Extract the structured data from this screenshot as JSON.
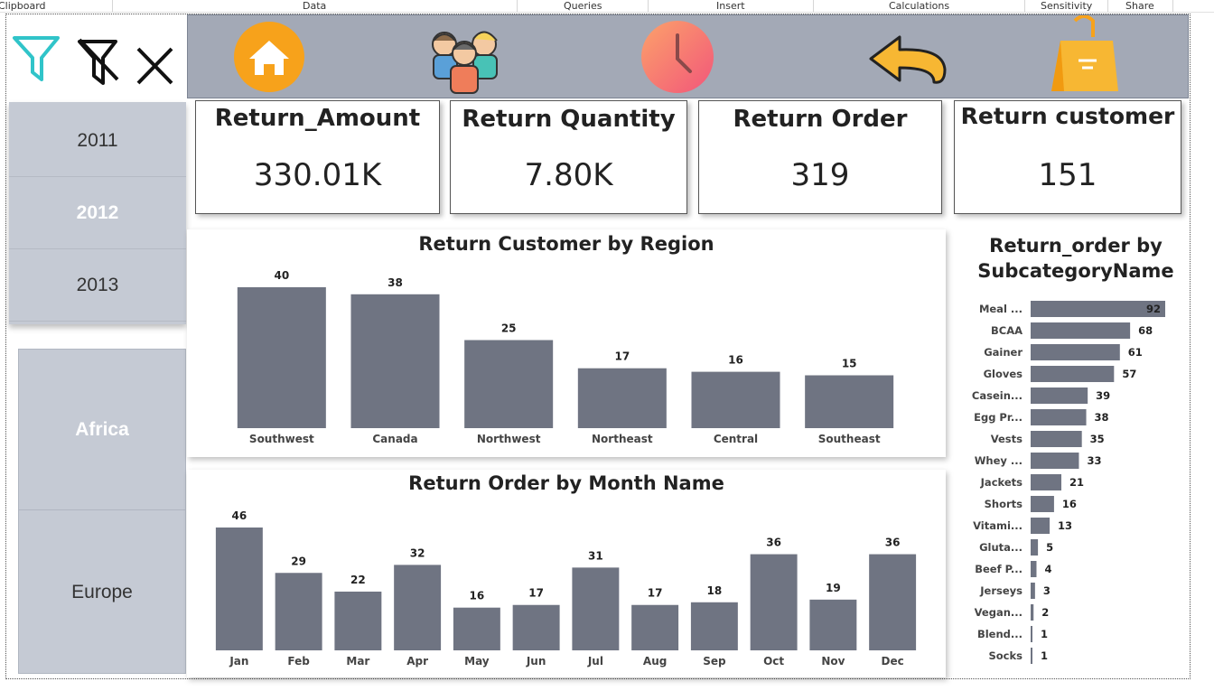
{
  "ribbon": {
    "groups": [
      "Clipboard",
      "Data",
      "Queries",
      "Insert",
      "Calculations",
      "Sensitivity",
      "Share"
    ]
  },
  "navigation": {
    "icons": [
      "home-icon",
      "customers-icon",
      "clock-icon",
      "back-arrow-icon",
      "shopping-bag-icon"
    ]
  },
  "filters": {
    "icons": [
      "filter-icon",
      "clear-filter-icon",
      "close-icon"
    ]
  },
  "years": {
    "items": [
      {
        "label": "2011",
        "selected": false
      },
      {
        "label": "2012",
        "selected": true
      },
      {
        "label": "2013",
        "selected": false
      }
    ]
  },
  "regions": {
    "items": [
      {
        "label": "Africa",
        "selected": true
      },
      {
        "label": "Europe",
        "selected": false
      }
    ]
  },
  "cards": [
    {
      "title": "Return_Amount",
      "value": "330.01K"
    },
    {
      "title": "Return Quantity",
      "value": "7.80K"
    },
    {
      "title": "Return Order",
      "value": "319"
    },
    {
      "title": "Return customer",
      "value": "151"
    }
  ],
  "colors": {
    "bar": "#6f7482",
    "topbar": "#a3a9b6",
    "slicer": "#c5cad4",
    "accent_teal": "#30c4c9"
  },
  "chart_data": [
    {
      "type": "bar",
      "title": "Return Customer by Region",
      "categories": [
        "Southwest",
        "Canada",
        "Northwest",
        "Northeast",
        "Central",
        "Southeast"
      ],
      "values": [
        40,
        38,
        25,
        17,
        16,
        15
      ],
      "xlabel": "",
      "ylabel": "",
      "ylim": [
        0,
        40
      ]
    },
    {
      "type": "bar",
      "title": "Return Order by Month Name",
      "categories": [
        "Jan",
        "Feb",
        "Mar",
        "Apr",
        "May",
        "Jun",
        "Jul",
        "Aug",
        "Sep",
        "Oct",
        "Nov",
        "Dec"
      ],
      "values": [
        46,
        29,
        22,
        32,
        16,
        17,
        31,
        17,
        18,
        36,
        19,
        36
      ],
      "xlabel": "",
      "ylabel": "",
      "ylim": [
        0,
        46
      ]
    },
    {
      "type": "bar",
      "orientation": "horizontal",
      "title": "Return_order by SubcategoryName",
      "categories": [
        "Meal ...",
        "BCAA",
        "Gainer",
        "Gloves",
        "Casein...",
        "Egg Pr...",
        "Vests",
        "Whey ...",
        "Jackets",
        "Shorts",
        "Vitami...",
        "Gluta...",
        "Beef P...",
        "Jerseys",
        "Vegan...",
        "Blend...",
        "Socks"
      ],
      "values": [
        92,
        68,
        61,
        57,
        39,
        38,
        35,
        33,
        21,
        16,
        13,
        5,
        4,
        3,
        2,
        1,
        1
      ],
      "xlabel": "",
      "ylabel": "",
      "xlim": [
        0,
        92
      ]
    }
  ]
}
